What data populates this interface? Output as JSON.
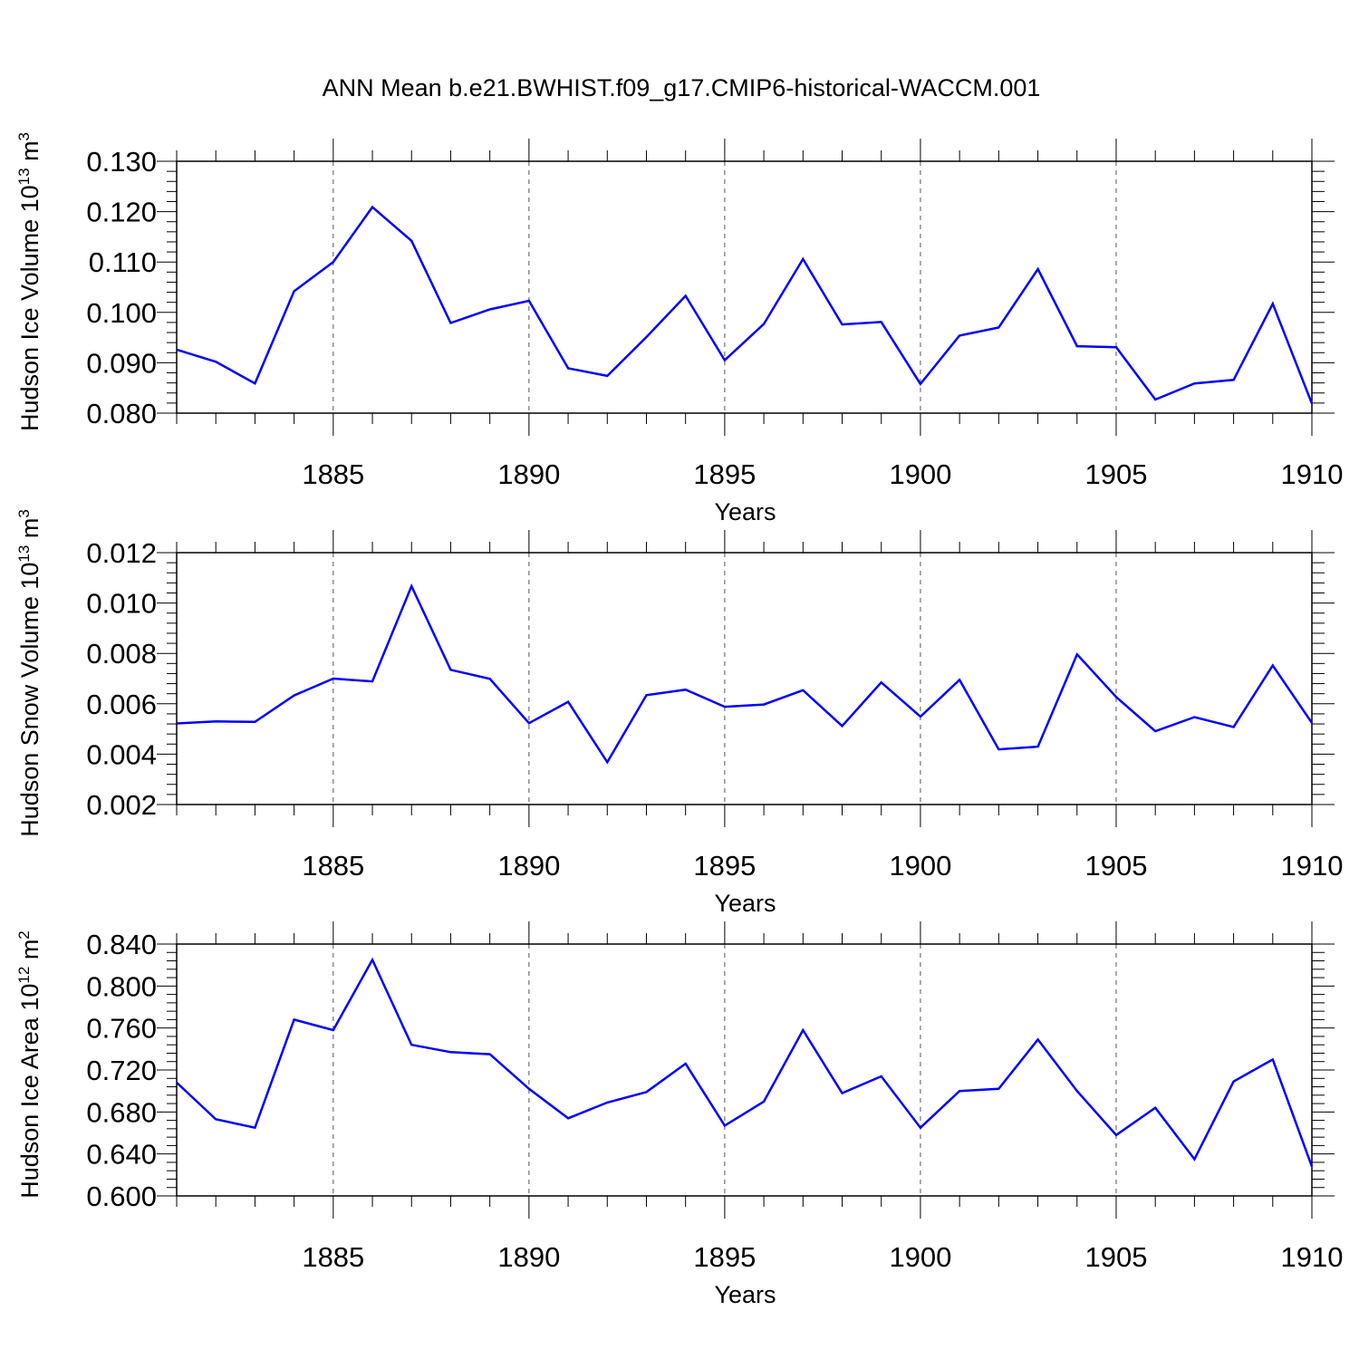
{
  "title": "ANN Mean b.e21.BWHIST.f09_g17.CMIP6-historical-WACCM.001",
  "colors": {
    "line": "#0000ff",
    "axis": "#000000",
    "grid": "#555555"
  },
  "chart_data": [
    {
      "type": "line",
      "ylabel": "Hudson Ice Volume 10",
      "ylabel_exp": "13",
      "ylabel_unit": "m",
      "ylabel_unit_exp": "3",
      "xlabel": "Years",
      "xlim": [
        1881,
        1910
      ],
      "ylim": [
        0.08,
        0.13
      ],
      "yticks": [
        "0.080",
        "0.090",
        "0.100",
        "0.110",
        "0.120",
        "0.130"
      ],
      "xticks": [
        "1885",
        "1890",
        "1895",
        "1900",
        "1905",
        "1910"
      ],
      "grid": "vertical dashed at major x ticks",
      "x": [
        1881,
        1882,
        1883,
        1884,
        1885,
        1886,
        1887,
        1888,
        1889,
        1890,
        1891,
        1892,
        1893,
        1894,
        1895,
        1896,
        1897,
        1898,
        1899,
        1900,
        1901,
        1902,
        1903,
        1904,
        1905,
        1906,
        1907,
        1908,
        1909,
        1910
      ],
      "values": [
        0.0926,
        0.0902,
        0.0859,
        0.1042,
        0.11,
        0.1209,
        0.1142,
        0.0979,
        0.1006,
        0.1023,
        0.0889,
        0.0874,
        0.0951,
        0.1033,
        0.0905,
        0.0977,
        0.1106,
        0.0976,
        0.0981,
        0.0858,
        0.0954,
        0.097,
        0.1086,
        0.0933,
        0.0931,
        0.0827,
        0.0859,
        0.0866,
        0.1017,
        0.0819
      ]
    },
    {
      "type": "line",
      "ylabel": "Hudson Snow Volume 10",
      "ylabel_exp": "13",
      "ylabel_unit": "m",
      "ylabel_unit_exp": "3",
      "xlabel": "Years",
      "xlim": [
        1881,
        1910
      ],
      "ylim": [
        0.002,
        0.012
      ],
      "yticks": [
        "0.002",
        "0.004",
        "0.006",
        "0.008",
        "0.010",
        "0.012"
      ],
      "xticks": [
        "1885",
        "1890",
        "1895",
        "1900",
        "1905",
        "1910"
      ],
      "grid": "vertical dashed at major x ticks",
      "x": [
        1881,
        1882,
        1883,
        1884,
        1885,
        1886,
        1887,
        1888,
        1889,
        1890,
        1891,
        1892,
        1893,
        1894,
        1895,
        1896,
        1897,
        1898,
        1899,
        1900,
        1901,
        1902,
        1903,
        1904,
        1905,
        1906,
        1907,
        1908,
        1909,
        1910
      ],
      "values": [
        0.00522,
        0.0053,
        0.00528,
        0.00633,
        0.007,
        0.00689,
        0.01067,
        0.00735,
        0.00699,
        0.00523,
        0.00608,
        0.00368,
        0.00634,
        0.00656,
        0.00588,
        0.00597,
        0.00654,
        0.00512,
        0.00685,
        0.00549,
        0.00695,
        0.00419,
        0.0043,
        0.00796,
        0.00627,
        0.00491,
        0.00547,
        0.00508,
        0.00752,
        0.00524
      ]
    },
    {
      "type": "line",
      "ylabel": "Hudson Ice Area 10",
      "ylabel_exp": "12",
      "ylabel_unit": "m",
      "ylabel_unit_exp": "2",
      "xlabel": "Years",
      "xlim": [
        1881,
        1910
      ],
      "ylim": [
        0.6,
        0.84
      ],
      "yticks": [
        "0.600",
        "0.640",
        "0.680",
        "0.720",
        "0.760",
        "0.800",
        "0.840"
      ],
      "xticks": [
        "1885",
        "1890",
        "1895",
        "1900",
        "1905",
        "1910"
      ],
      "grid": "vertical dashed at major x ticks",
      "x": [
        1881,
        1882,
        1883,
        1884,
        1885,
        1886,
        1887,
        1888,
        1889,
        1890,
        1891,
        1892,
        1893,
        1894,
        1895,
        1896,
        1897,
        1898,
        1899,
        1900,
        1901,
        1902,
        1903,
        1904,
        1905,
        1906,
        1907,
        1908,
        1909,
        1910
      ],
      "values": [
        0.708,
        0.673,
        0.665,
        0.768,
        0.758,
        0.825,
        0.744,
        0.737,
        0.735,
        0.702,
        0.674,
        0.689,
        0.699,
        0.726,
        0.667,
        0.69,
        0.758,
        0.698,
        0.714,
        0.665,
        0.7,
        0.702,
        0.749,
        0.7,
        0.658,
        0.684,
        0.635,
        0.709,
        0.73,
        0.628
      ]
    }
  ]
}
